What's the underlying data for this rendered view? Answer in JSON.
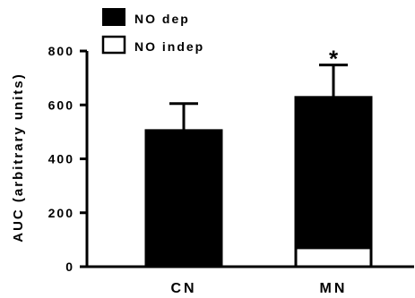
{
  "chart_data": {
    "type": "bar",
    "stacked": "overlay",
    "categories": [
      "CN",
      "MN"
    ],
    "ylabel": "AUC (arbitrary units)",
    "xlabel": "",
    "ylim": [
      0,
      800
    ],
    "yticks": [
      "0",
      "200",
      "400",
      "600",
      "800"
    ],
    "ytick_values": [
      0,
      200,
      400,
      600,
      800
    ],
    "grid": false,
    "legend_position": "top-left",
    "series": [
      {
        "name": "NO dep",
        "color": "#000000",
        "values": [
          505,
          628
        ],
        "error": [
          100,
          120
        ],
        "significance": [
          "",
          "*"
        ]
      },
      {
        "name": "NO indep",
        "color": "#ffffff",
        "values": [
          8,
          70
        ],
        "error": [
          0,
          105
        ],
        "significance": [
          "",
          "*"
        ]
      }
    ]
  }
}
